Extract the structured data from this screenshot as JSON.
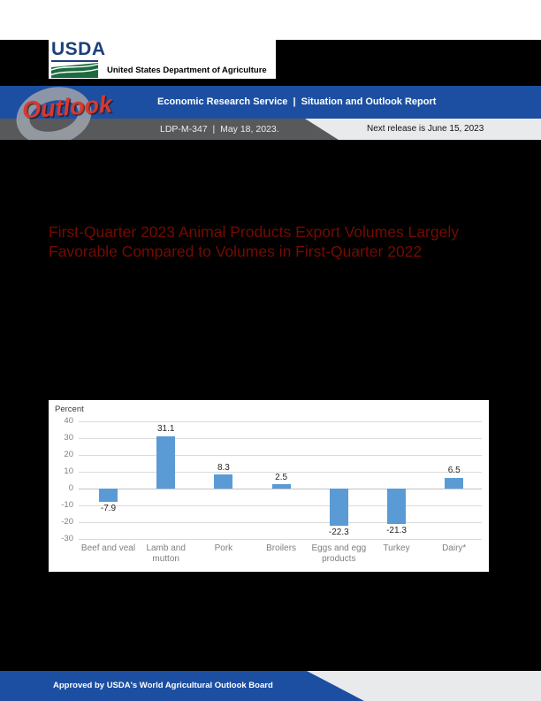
{
  "header": {
    "usda_acronym": "USDA",
    "usda_department": "United States Department of Agriculture",
    "outlook_wordmark": "Outlook",
    "service_line": "Economic Research Service  |  Situation and Outlook Report",
    "issue_line": "LDP-M-347  |  May 18, 2023.",
    "next_release": "Next release is June 15, 2023"
  },
  "title": {
    "line1": "First-Quarter 2023 Animal Products Export Volumes Largely",
    "line2": "Favorable Compared to Volumes in First-Quarter 2022"
  },
  "footer": {
    "approval": "Approved by USDA's World Agricultural Outlook Board"
  },
  "colors": {
    "banner_blue": "#1C4FA1",
    "band_gray": "#58595B",
    "tab_light": "#E9EAEC",
    "title_red": "#750B00",
    "bar_blue": "#5B9BD5",
    "usda_blue": "#1E3F7B",
    "usda_green": "#1C6B40",
    "outlook_red": "#D63A2E"
  },
  "chart_data": {
    "type": "bar",
    "title": "",
    "ylabel": "Percent",
    "xlabel": "",
    "categories": [
      "Beef and veal",
      "Lamb and\nmutton",
      "Pork",
      "Broilers",
      "Eggs and egg\nproducts",
      "Turkey",
      "Dairy*"
    ],
    "values": [
      -7.9,
      31.1,
      8.3,
      2.5,
      -22.3,
      -21.3,
      6.5
    ],
    "value_labels": [
      "-7.9",
      "31.1",
      "8.3",
      "2.5",
      "-22.3",
      "-21.3",
      "6.5"
    ],
    "ylim": [
      -30,
      40
    ],
    "ytick_step": 10,
    "grid": true,
    "legend": false,
    "bar_color": "#5B9BD5"
  }
}
